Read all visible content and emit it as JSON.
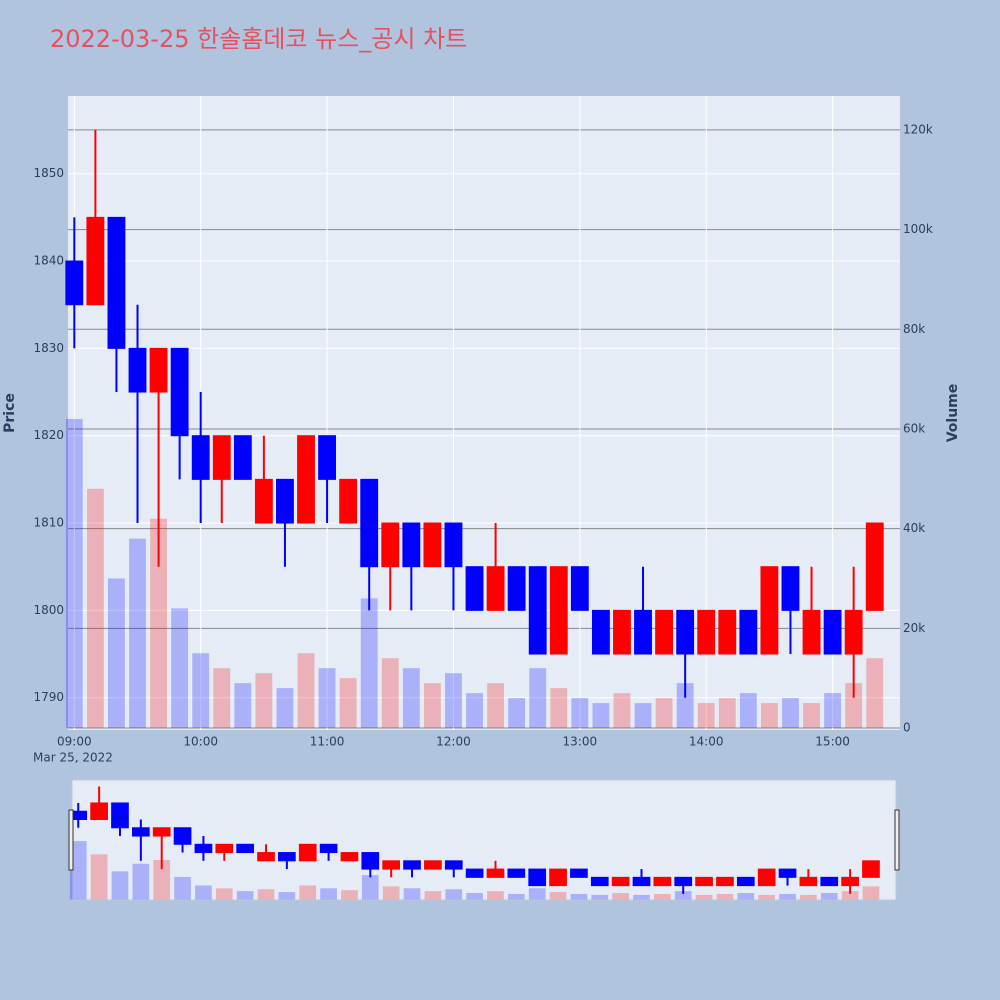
{
  "chart_data": {
    "type": "candlestick",
    "title": "2022-03-25 한솔홈데코 뉴스_공시 차트",
    "ylabel": "Price",
    "y2label": "Volume",
    "x": [
      "09:00",
      "09:10",
      "09:20",
      "09:30",
      "09:40",
      "09:50",
      "10:00",
      "10:10",
      "10:20",
      "10:30",
      "10:40",
      "10:50",
      "11:00",
      "11:10",
      "11:20",
      "11:30",
      "11:40",
      "11:50",
      "12:00",
      "12:10",
      "12:20",
      "12:30",
      "12:40",
      "12:50",
      "13:00",
      "13:10",
      "13:20",
      "13:30",
      "13:40",
      "13:50",
      "14:00",
      "14:10",
      "14:20",
      "14:30",
      "14:40",
      "14:50",
      "15:00",
      "15:10",
      "15:20"
    ],
    "open": [
      1840,
      1835,
      1845,
      1830,
      1825,
      1830,
      1820,
      1815,
      1820,
      1810,
      1815,
      1810,
      1820,
      1810,
      1815,
      1805,
      1810,
      1805,
      1810,
      1805,
      1800,
      1805,
      1805,
      1795,
      1805,
      1800,
      1795,
      1800,
      1795,
      1800,
      1795,
      1795,
      1800,
      1795,
      1805,
      1795,
      1800,
      1795,
      1800
    ],
    "high": [
      1845,
      1855,
      1845,
      1835,
      1830,
      1830,
      1825,
      1820,
      1820,
      1820,
      1815,
      1820,
      1820,
      1815,
      1815,
      1810,
      1810,
      1810,
      1810,
      1805,
      1810,
      1805,
      1805,
      1805,
      1805,
      1800,
      1800,
      1805,
      1800,
      1800,
      1800,
      1800,
      1800,
      1805,
      1805,
      1805,
      1800,
      1805,
      1810
    ],
    "low": [
      1830,
      1835,
      1825,
      1810,
      1805,
      1815,
      1810,
      1810,
      1815,
      1810,
      1805,
      1810,
      1810,
      1810,
      1800,
      1800,
      1800,
      1805,
      1800,
      1800,
      1800,
      1800,
      1795,
      1795,
      1800,
      1795,
      1795,
      1795,
      1795,
      1790,
      1795,
      1795,
      1795,
      1795,
      1795,
      1795,
      1795,
      1790,
      1800
    ],
    "close": [
      1835,
      1845,
      1830,
      1825,
      1830,
      1820,
      1815,
      1820,
      1815,
      1815,
      1810,
      1820,
      1815,
      1815,
      1805,
      1810,
      1805,
      1810,
      1805,
      1800,
      1805,
      1800,
      1795,
      1805,
      1800,
      1795,
      1800,
      1795,
      1800,
      1795,
      1800,
      1800,
      1795,
      1805,
      1800,
      1800,
      1795,
      1800,
      1810
    ],
    "volume": [
      62000,
      48000,
      30000,
      38000,
      42000,
      24000,
      15000,
      12000,
      9000,
      11000,
      8000,
      15000,
      12000,
      10000,
      26000,
      14000,
      12000,
      9000,
      11000,
      7000,
      9000,
      6000,
      12000,
      8000,
      6000,
      5000,
      7000,
      5000,
      6000,
      9000,
      5000,
      6000,
      7000,
      5000,
      6000,
      5000,
      7000,
      9000,
      14000
    ],
    "increasing_color": "#ff0000",
    "decreasing_color": "#0000ff",
    "xlim": [
      "08:57",
      "15:32"
    ],
    "xticks": [
      "09:00",
      "10:00",
      "11:00",
      "12:00",
      "13:00",
      "14:00",
      "15:00"
    ],
    "x_date_label": "Mar 25, 2022",
    "ylim": [
      1786.3,
      1858.9
    ],
    "yticks": [
      1790,
      1800,
      1810,
      1820,
      1830,
      1840,
      1850
    ],
    "y2lim": [
      -400,
      126800
    ],
    "y2ticks": [
      0,
      {
        "value": 20000,
        "label": "20k"
      },
      {
        "value": 40000,
        "label": "40k"
      },
      {
        "value": 60000,
        "label": "60k"
      },
      {
        "value": 80000,
        "label": "80k"
      },
      {
        "value": 100000,
        "label": "100k"
      },
      {
        "value": 120000,
        "label": "120k"
      }
    ],
    "grid": true,
    "rangeslider": true
  }
}
